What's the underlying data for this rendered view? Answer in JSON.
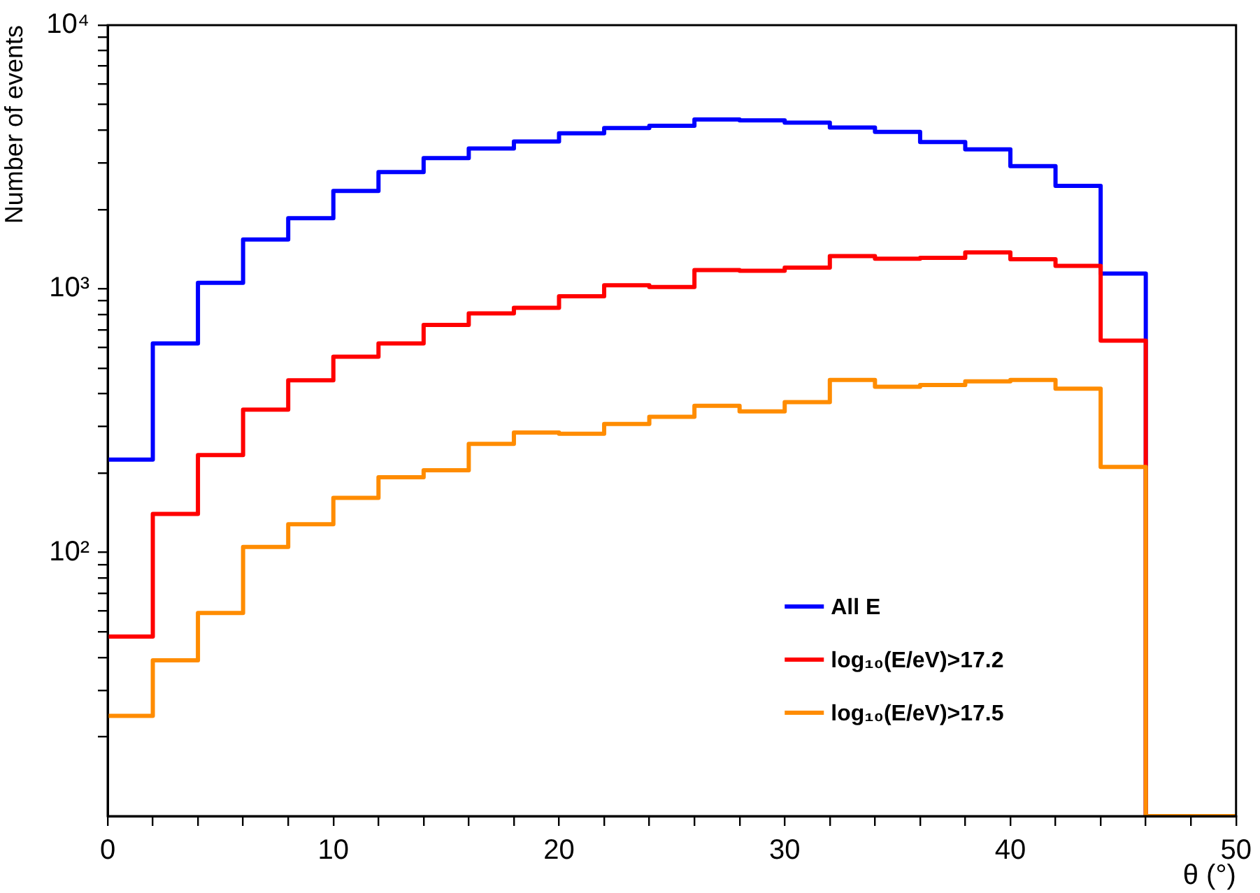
{
  "chart_data": {
    "type": "histogram",
    "xlabel": "θ (°)",
    "ylabel": "Number of events",
    "log": "y",
    "legend": "bottom right",
    "bins": [
      0,
      2,
      4,
      6,
      8,
      10,
      12,
      14,
      16,
      18,
      20,
      22,
      24,
      26,
      28,
      30,
      32,
      34,
      36,
      38,
      40,
      42,
      44,
      46,
      48,
      50
    ],
    "series": [
      {
        "name": "All E",
        "color": "#0000ff",
        "values": [
          225,
          621,
          1054,
          1538,
          1854,
          2350,
          2773,
          3130,
          3407,
          3620,
          3890,
          4070,
          4150,
          4390,
          4355,
          4270,
          4090,
          3940,
          3605,
          3380,
          2920,
          2456,
          1142,
          null,
          null
        ]
      },
      {
        "name": "log₁₀(E/eV)>17.2",
        "color": "#ff0000",
        "values": [
          48,
          140,
          234,
          348,
          450,
          553,
          621,
          730,
          807,
          847,
          937,
          1032,
          1016,
          1178,
          1170,
          1203,
          1331,
          1300,
          1310,
          1374,
          1294,
          1222,
          636,
          null,
          null
        ]
      },
      {
        "name": "log₁₀(E/eV)>17.5",
        "color": "#ff8c00",
        "values": [
          24,
          39,
          59,
          105,
          128,
          161,
          193,
          205,
          258,
          285,
          282,
          307,
          327,
          360,
          343,
          372,
          451,
          425,
          432,
          446,
          451,
          418,
          211,
          null,
          null
        ]
      }
    ],
    "xlim": [
      0,
      50
    ],
    "xticks": [
      0,
      {
        "value": 2,
        "label": null
      },
      {
        "value": 4,
        "label": null
      },
      {
        "value": 6,
        "label": null
      },
      {
        "value": 8,
        "label": null
      },
      10,
      {
        "value": 12,
        "label": null
      },
      {
        "value": 14,
        "label": null
      },
      {
        "value": 16,
        "label": null
      },
      {
        "value": 18,
        "label": null
      },
      20,
      {
        "value": 22,
        "label": null
      },
      {
        "value": 24,
        "label": null
      },
      {
        "value": 26,
        "label": null
      },
      {
        "value": 28,
        "label": null
      },
      30,
      {
        "value": 32,
        "label": null
      },
      {
        "value": 34,
        "label": null
      },
      {
        "value": 36,
        "label": null
      },
      {
        "value": 38,
        "label": null
      },
      40,
      {
        "value": 42,
        "label": null
      },
      {
        "value": 44,
        "label": null
      },
      {
        "value": 46,
        "label": null
      },
      {
        "value": 48,
        "label": null
      },
      50
    ],
    "ylim": [
      10,
      10000
    ],
    "yticks": [
      {
        "value": 20,
        "label": null
      },
      {
        "value": 30,
        "label": null
      },
      {
        "value": 40,
        "label": null
      },
      {
        "value": 50,
        "label": null
      },
      {
        "value": 60,
        "label": null
      },
      {
        "value": 70,
        "label": null
      },
      {
        "value": 80,
        "label": null
      },
      {
        "value": 90,
        "label": null
      },
      {
        "value": 100,
        "label": "10²"
      },
      {
        "value": 200,
        "label": null
      },
      {
        "value": 300,
        "label": null
      },
      {
        "value": 400,
        "label": null
      },
      {
        "value": 500,
        "label": null
      },
      {
        "value": 600,
        "label": null
      },
      {
        "value": 700,
        "label": null
      },
      {
        "value": 800,
        "label": null
      },
      {
        "value": 900,
        "label": null
      },
      {
        "value": 1000,
        "label": "10³"
      },
      {
        "value": 2000,
        "label": null
      },
      {
        "value": 3000,
        "label": null
      },
      {
        "value": 4000,
        "label": null
      },
      {
        "value": 5000,
        "label": null
      },
      {
        "value": 6000,
        "label": null
      },
      {
        "value": 7000,
        "label": null
      },
      {
        "value": 8000,
        "label": null
      },
      {
        "value": 9000,
        "label": null
      },
      {
        "value": 10000,
        "label": "10⁴"
      }
    ]
  }
}
